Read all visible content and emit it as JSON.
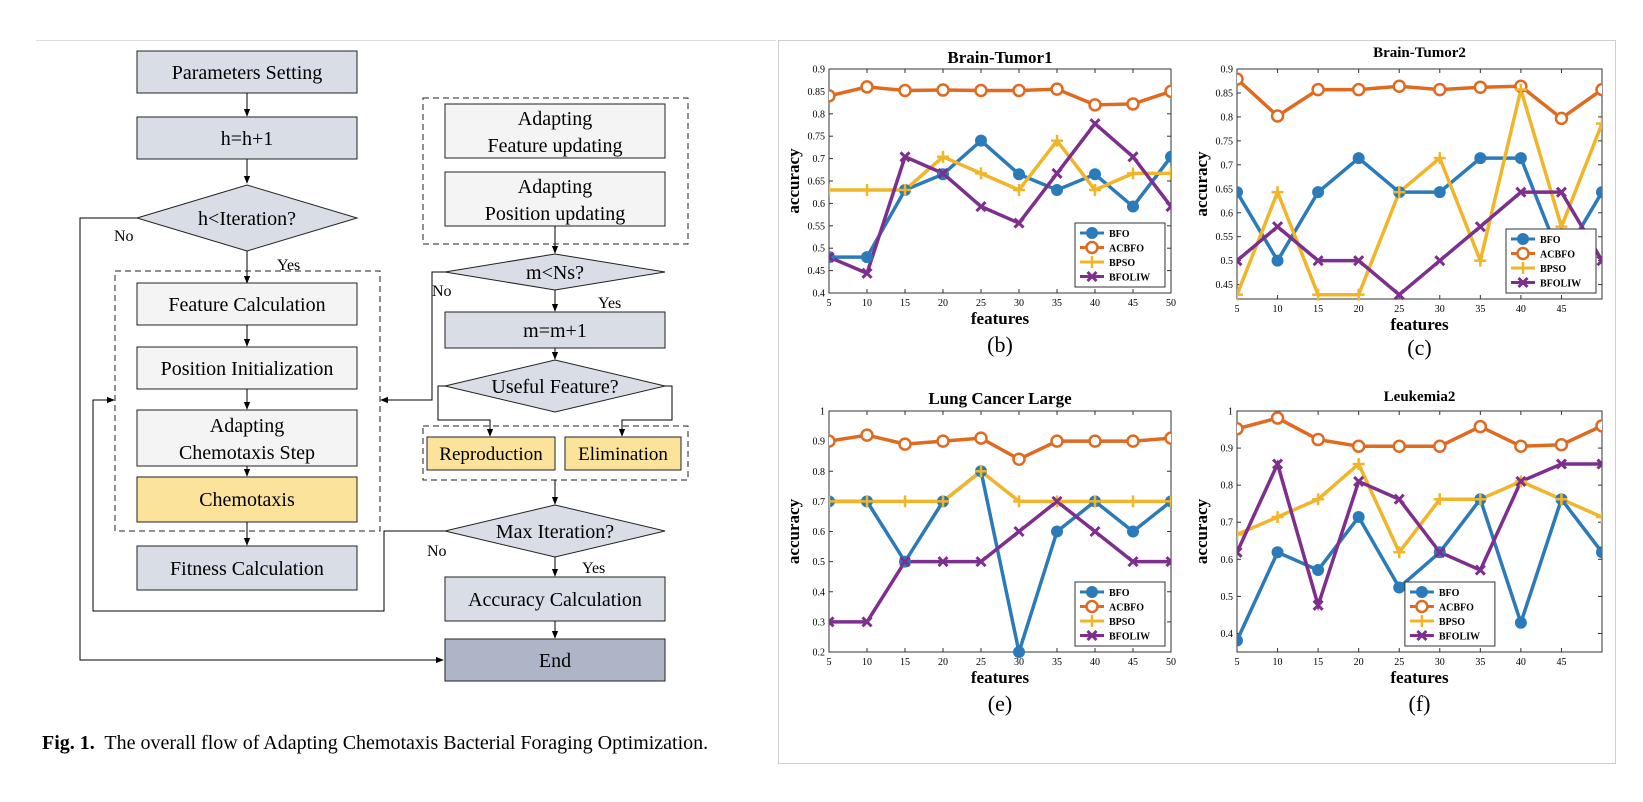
{
  "flowchart": {
    "left": {
      "parameters_setting": "Parameters Setting",
      "h_update": "h=h+1",
      "h_condition": "h<Iteration?",
      "no_label": "No",
      "yes_label": "Yes",
      "feature_calculation": "Feature Calculation",
      "position_initialization": "Position Initialization",
      "adapting_chemotaxis_line1": "Adapting",
      "adapting_chemotaxis_line2": "Chemotaxis Step",
      "chemotaxis": "Chemotaxis",
      "fitness_calculation": "Fitness Calculation"
    },
    "right": {
      "feature_updating_line1": "Adapting",
      "feature_updating_line2": "Feature updating",
      "position_updating_line1": "Adapting",
      "position_updating_line2": "Position updating",
      "m_condition": "m<Ns?",
      "no_label": "No",
      "yes_label": "Yes",
      "m_update": "m=m+1",
      "useful_feature": "Useful Feature?",
      "reproduction": "Reproduction",
      "elimination": "Elimination",
      "max_iteration": "Max Iteration?",
      "no_label2": "No",
      "yes_label2": "Yes",
      "accuracy_calculation": "Accuracy Calculation",
      "end": "End"
    },
    "colors": {
      "gray_box": "#d9dde6",
      "light_box": "#f4f4f4",
      "yellow_box": "#fbe39c",
      "end_box": "#aeb5c6",
      "diamond": "#d9dde6"
    }
  },
  "caption": {
    "label": "Fig. 1.",
    "text": "The overall flow of Adapting Chemotaxis Bacterial Foraging Optimization."
  },
  "chart_data": [
    {
      "type": "line",
      "title": "Brain-Tumor1",
      "panel_label": "(b)",
      "xlabel": "features",
      "ylabel": "accuracy",
      "x": [
        5,
        10,
        15,
        20,
        25,
        30,
        35,
        40,
        45,
        50
      ],
      "xticks": [
        "5",
        "10",
        "15",
        "20",
        "25",
        "30",
        "35",
        "40",
        "45",
        "50"
      ],
      "ylim": [
        0.4,
        0.9
      ],
      "yticks": [
        "0.4",
        "0.45",
        "0.5",
        "0.55",
        "0.6",
        "0.65",
        "0.7",
        "0.75",
        "0.8",
        "0.85",
        "0.9"
      ],
      "legend_position": "bottom-right",
      "series": [
        {
          "name": "BFO",
          "color": "#2b7bba",
          "marker": "circle",
          "values": [
            0.48,
            0.48,
            0.63,
            0.665,
            0.74,
            0.665,
            0.63,
            0.665,
            0.593,
            0.704
          ]
        },
        {
          "name": "ACBFO",
          "color": "#e06a20",
          "marker": "circle-open",
          "values": [
            0.84,
            0.86,
            0.852,
            0.853,
            0.852,
            0.852,
            0.855,
            0.82,
            0.822,
            0.85
          ]
        },
        {
          "name": "BPSO",
          "color": "#f1b52a",
          "marker": "plus",
          "values": [
            0.63,
            0.63,
            0.63,
            0.704,
            0.667,
            0.63,
            0.74,
            0.63,
            0.667,
            0.667
          ]
        },
        {
          "name": "BFOLIW",
          "color": "#7e2f8e",
          "marker": "x",
          "values": [
            0.48,
            0.444,
            0.704,
            0.667,
            0.593,
            0.556,
            0.667,
            0.778,
            0.704,
            0.593
          ]
        }
      ]
    },
    {
      "type": "line",
      "title": "Brain-Tumor2",
      "panel_label": "(c)",
      "xlabel": "features",
      "ylabel": "accuracy",
      "x": [
        5,
        10,
        15,
        20,
        25,
        30,
        35,
        40,
        45,
        50
      ],
      "xticks": [
        "5",
        "10",
        "15",
        "20",
        "25",
        "30",
        "35",
        "40",
        "45"
      ],
      "xlim": [
        5,
        50
      ],
      "ylim": [
        0.42,
        0.9
      ],
      "yticks": [
        "0.45",
        "0.5",
        "0.55",
        "0.6",
        "0.65",
        "0.7",
        "0.75",
        "0.8",
        "0.85",
        "0.9"
      ],
      "legend_position": "bottom-right",
      "series": [
        {
          "name": "BFO",
          "color": "#2b7bba",
          "marker": "circle",
          "values": [
            0.643,
            0.5,
            0.643,
            0.714,
            0.643,
            0.643,
            0.714,
            0.714,
            0.5,
            0.643
          ]
        },
        {
          "name": "ACBFO",
          "color": "#e06a20",
          "marker": "circle-open",
          "values": [
            0.879,
            0.802,
            0.857,
            0.857,
            0.864,
            0.857,
            0.862,
            0.864,
            0.797,
            0.857
          ]
        },
        {
          "name": "BPSO",
          "color": "#f1b52a",
          "marker": "plus",
          "values": [
            0.429,
            0.643,
            0.429,
            0.429,
            0.643,
            0.714,
            0.5,
            0.857,
            0.571,
            0.786
          ]
        },
        {
          "name": "BFOLIW",
          "color": "#7e2f8e",
          "marker": "x",
          "values": [
            0.5,
            0.571,
            0.5,
            0.5,
            0.429,
            0.5,
            0.571,
            0.643,
            0.643,
            0.5
          ]
        }
      ]
    },
    {
      "type": "line",
      "title": "Lung Cancer Large",
      "panel_label": "(e)",
      "xlabel": "features",
      "ylabel": "accuracy",
      "x": [
        5,
        10,
        15,
        20,
        25,
        30,
        35,
        40,
        45,
        50
      ],
      "xticks": [
        "5",
        "10",
        "15",
        "20",
        "25",
        "30",
        "35",
        "40",
        "45",
        "50"
      ],
      "ylim": [
        0.2,
        1.0
      ],
      "yticks": [
        "0.2",
        "0.3",
        "0.4",
        "0.5",
        "0.6",
        "0.7",
        "0.8",
        "0.9",
        "1"
      ],
      "legend_position": "bottom-right",
      "series": [
        {
          "name": "BFO",
          "color": "#2b7bba",
          "marker": "circle",
          "values": [
            0.7,
            0.7,
            0.5,
            0.7,
            0.8,
            0.2,
            0.6,
            0.7,
            0.6,
            0.7
          ]
        },
        {
          "name": "ACBFO",
          "color": "#e06a20",
          "marker": "circle-open",
          "values": [
            0.9,
            0.92,
            0.89,
            0.9,
            0.91,
            0.84,
            0.9,
            0.9,
            0.9,
            0.91
          ]
        },
        {
          "name": "BPSO",
          "color": "#f1b52a",
          "marker": "plus",
          "values": [
            0.7,
            0.7,
            0.7,
            0.7,
            0.8,
            0.7,
            0.7,
            0.7,
            0.7,
            0.7
          ]
        },
        {
          "name": "BFOLIW",
          "color": "#7e2f8e",
          "marker": "x",
          "values": [
            0.3,
            0.3,
            0.5,
            0.5,
            0.5,
            0.6,
            0.7,
            0.6,
            0.5,
            0.5
          ]
        }
      ]
    },
    {
      "type": "line",
      "title": "Leukemia2",
      "panel_label": "(f)",
      "xlabel": "features",
      "ylabel": "accuracy",
      "x": [
        5,
        10,
        15,
        20,
        25,
        30,
        35,
        40,
        45,
        50
      ],
      "xticks": [
        "5",
        "10",
        "15",
        "20",
        "25",
        "30",
        "35",
        "40",
        "45"
      ],
      "xlim": [
        5,
        50
      ],
      "ylim": [
        0.35,
        1.0
      ],
      "yticks": [
        "0.4",
        "0.5",
        "0.6",
        "0.7",
        "0.8",
        "0.9",
        "1"
      ],
      "legend_position": "bottom-center",
      "series": [
        {
          "name": "BFO",
          "color": "#2b7bba",
          "marker": "circle",
          "values": [
            0.381,
            0.619,
            0.571,
            0.714,
            0.524,
            0.619,
            0.762,
            0.429,
            0.762,
            0.619
          ]
        },
        {
          "name": "ACBFO",
          "color": "#e06a20",
          "marker": "circle-open",
          "values": [
            0.952,
            0.981,
            0.923,
            0.905,
            0.905,
            0.905,
            0.958,
            0.905,
            0.909,
            0.96
          ]
        },
        {
          "name": "BPSO",
          "color": "#f1b52a",
          "marker": "plus",
          "values": [
            0.667,
            0.714,
            0.762,
            0.857,
            0.619,
            0.762,
            0.762,
            0.81,
            0.762,
            0.714
          ]
        },
        {
          "name": "BFOLIW",
          "color": "#7e2f8e",
          "marker": "x",
          "values": [
            0.619,
            0.857,
            0.476,
            0.81,
            0.762,
            0.619,
            0.571,
            0.81,
            0.857,
            0.857
          ]
        }
      ]
    }
  ]
}
